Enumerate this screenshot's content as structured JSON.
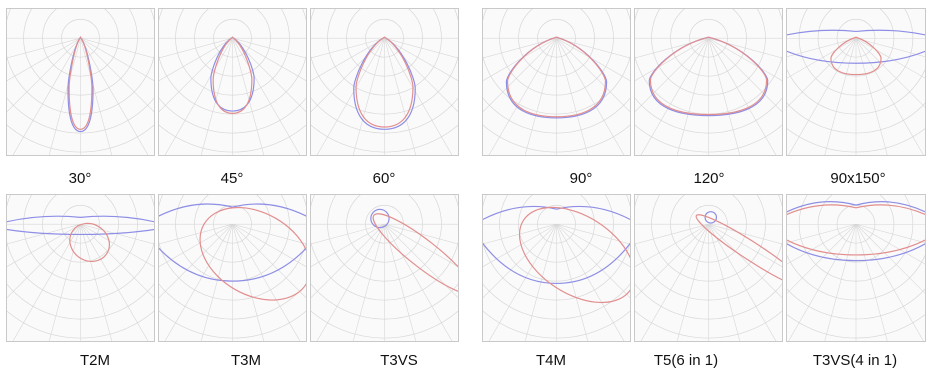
{
  "colors": {
    "background": "#ffffff",
    "panel_bg": "#fafafa",
    "panel_border": "#c9c9c9",
    "grid": "#d7d7d7",
    "c0_curve": "#8e8ee6",
    "c90_curve": "#e28e8e",
    "caption_text": "#111111"
  },
  "diagrams": [
    {
      "label": "30°",
      "c0": {
        "shape": "beam",
        "half_width": 0.11,
        "reach": 0.82
      },
      "c90": {
        "shape": "beam",
        "half_width": 0.1,
        "reach": 0.8
      }
    },
    {
      "label": "45°",
      "c0": {
        "shape": "beam",
        "half_width": 0.19,
        "reach": 0.64
      },
      "c90": {
        "shape": "beam",
        "half_width": 0.17,
        "reach": 0.66
      }
    },
    {
      "label": "60°",
      "c0": {
        "shape": "beam",
        "half_width": 0.27,
        "reach": 0.8
      },
      "c90": {
        "shape": "beam",
        "half_width": 0.25,
        "reach": 0.78
      }
    },
    {
      "label": "90°",
      "c0": {
        "shape": "beam",
        "half_width": 0.44,
        "reach": 0.7
      },
      "c90": {
        "shape": "beam",
        "half_width": 0.43,
        "reach": 0.69
      }
    },
    {
      "label": "120°",
      "c0": {
        "shape": "beam",
        "half_width": 0.52,
        "reach": 0.68
      },
      "c90": {
        "shape": "beam",
        "half_width": 0.51,
        "reach": 0.67
      }
    },
    {
      "label": "90x150°",
      "c0": {
        "shape": "wide",
        "half_width": 0.8,
        "depth": 0.22,
        "lift": 0.1
      },
      "c90": {
        "shape": "beam",
        "half_width": 0.22,
        "reach": 0.32
      }
    },
    {
      "label": "T2M",
      "c0": {
        "shape": "wide",
        "half_width": 0.8,
        "depth": 0.09,
        "lift": 0.1
      },
      "c90": {
        "shape": "side",
        "dx": 0.08,
        "dy": 0.16,
        "rx": 0.18,
        "ry": 0.16,
        "angle": 35
      }
    },
    {
      "label": "T3M",
      "c0": {
        "shape": "wide",
        "half_width": 0.8,
        "depth": 0.5,
        "lift": 0.25
      },
      "c90": {
        "shape": "side",
        "dx": 0.2,
        "dy": 0.26,
        "rx": 0.52,
        "ry": 0.36,
        "angle": 30
      }
    },
    {
      "label": "T3VS",
      "c0": {
        "shape": "blob",
        "dx": -0.04,
        "dy": -0.05,
        "rx": 0.08,
        "ry": 0.08
      },
      "c90": {
        "shape": "side",
        "dx": 0.34,
        "dy": 0.26,
        "rx": 0.55,
        "ry": 0.12,
        "angle": 38
      }
    },
    {
      "label": "T4M",
      "c0": {
        "shape": "wide",
        "half_width": 0.75,
        "depth": 0.52,
        "lift": 0.22
      },
      "c90": {
        "shape": "side",
        "dx": 0.18,
        "dy": 0.27,
        "rx": 0.56,
        "ry": 0.34,
        "angle": 33
      }
    },
    {
      "label": "T5(6 in 1)",
      "c0": {
        "shape": "blob",
        "dx": 0.02,
        "dy": -0.06,
        "rx": 0.05,
        "ry": 0.05
      },
      "c90": {
        "shape": "side",
        "dx": 0.38,
        "dy": 0.24,
        "rx": 0.58,
        "ry": 0.08,
        "angle": 33
      }
    },
    {
      "label": "T3VS(4 in 1)",
      "c0": {
        "shape": "wide",
        "half_width": 0.82,
        "depth": 0.32,
        "lift": 0.28
      },
      "c90": {
        "shape": "wide",
        "half_width": 0.8,
        "depth": 0.27,
        "lift": 0.24
      }
    }
  ]
}
